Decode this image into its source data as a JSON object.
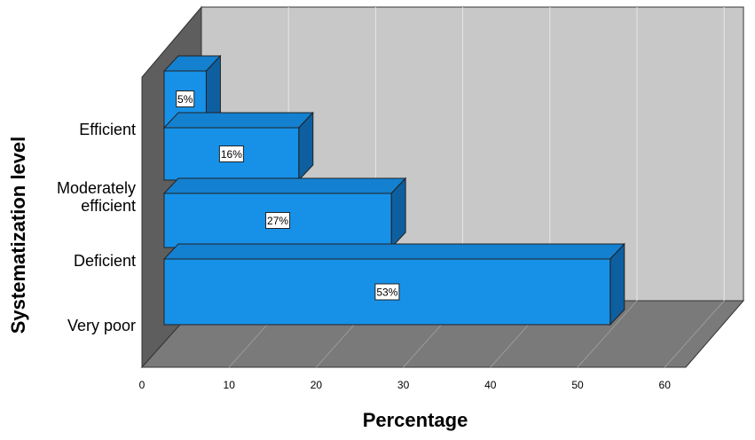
{
  "chart_data": {
    "type": "bar",
    "orientation": "horizontal",
    "style": "3d",
    "xlabel": "Percentage",
    "ylabel": "Systematization level",
    "xlim": [
      0,
      60
    ],
    "x_ticks": [
      "0",
      "10",
      "20",
      "30",
      "40",
      "50",
      "60"
    ],
    "grid": true,
    "bars": [
      {
        "value": 5,
        "data_label": "5%"
      },
      {
        "value": 16,
        "data_label": "16%"
      },
      {
        "value": 27,
        "data_label": "27%"
      },
      {
        "value": 53,
        "data_label": "53%"
      }
    ],
    "category_labels": [
      [
        "Efficient"
      ],
      [
        "Moderately",
        "efficient"
      ],
      [
        "Deficient"
      ],
      [
        "Very poor"
      ]
    ],
    "colors": {
      "bar_front": "#1791E8",
      "bar_top": "#1480D0",
      "bar_side": "#0D5FA0",
      "back_wall": "#C8C8C8",
      "side_wall": "#5E5E5E",
      "floor": "#7A7A7A"
    }
  }
}
